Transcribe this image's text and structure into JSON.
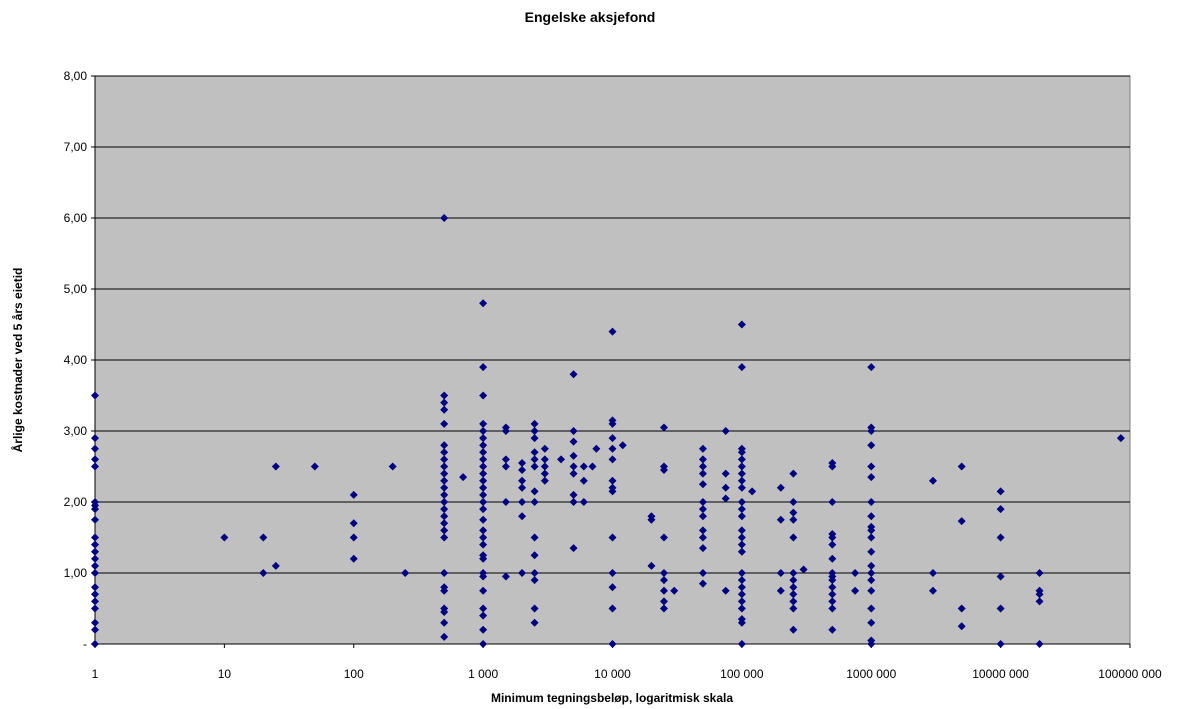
{
  "chart_data": {
    "type": "scatter",
    "title": "Engelske aksjefond",
    "xlabel": "Minimum tegningsbeløp, logaritmisk skala",
    "ylabel": "Årlige kostnader ved 5 års eietid",
    "x_scale": "log",
    "xlim": [
      1,
      100000000
    ],
    "ylim": [
      0,
      8
    ],
    "x_ticks": [
      1,
      10,
      100,
      1000,
      10000,
      100000,
      1000000,
      10000000,
      100000000
    ],
    "x_tick_labels": [
      "1",
      "10",
      "100",
      "1 000",
      "10 000",
      "100 000",
      "1000 000",
      "10000 000",
      "100000 000"
    ],
    "y_ticks": [
      0,
      1,
      2,
      3,
      4,
      5,
      6,
      7,
      8
    ],
    "y_tick_labels": [
      "-",
      "1,00",
      "2,00",
      "3,00",
      "4,00",
      "5,00",
      "6,00",
      "7,00",
      "8,00"
    ],
    "grid": "horizontal",
    "legend": "none",
    "colors": {
      "plot_background": "#c0c0c0",
      "marker": "#000080",
      "gridline": "#000000"
    },
    "points": [
      [
        1,
        3.5
      ],
      [
        1,
        2.9
      ],
      [
        1,
        2.75
      ],
      [
        1,
        2.6
      ],
      [
        1,
        2.5
      ],
      [
        1,
        2.0
      ],
      [
        1,
        1.95
      ],
      [
        1,
        1.9
      ],
      [
        1,
        1.75
      ],
      [
        1,
        1.5
      ],
      [
        1,
        1.4
      ],
      [
        1,
        1.3
      ],
      [
        1,
        1.2
      ],
      [
        1,
        1.1
      ],
      [
        1,
        1.0
      ],
      [
        1,
        0.8
      ],
      [
        1,
        0.7
      ],
      [
        1,
        0.6
      ],
      [
        1,
        0.5
      ],
      [
        1,
        0.3
      ],
      [
        1,
        0.2
      ],
      [
        1,
        0.0
      ],
      [
        10,
        1.5
      ],
      [
        20,
        1.5
      ],
      [
        20,
        1.0
      ],
      [
        25,
        2.5
      ],
      [
        25,
        1.1
      ],
      [
        50,
        2.5
      ],
      [
        100,
        2.1
      ],
      [
        100,
        1.7
      ],
      [
        100,
        1.5
      ],
      [
        100,
        1.2
      ],
      [
        200,
        2.5
      ],
      [
        250,
        1.0
      ],
      [
        500,
        6.0
      ],
      [
        500,
        3.5
      ],
      [
        500,
        3.4
      ],
      [
        500,
        3.3
      ],
      [
        500,
        3.1
      ],
      [
        500,
        2.8
      ],
      [
        500,
        2.7
      ],
      [
        500,
        2.6
      ],
      [
        500,
        2.5
      ],
      [
        500,
        2.4
      ],
      [
        500,
        2.3
      ],
      [
        500,
        2.2
      ],
      [
        500,
        2.1
      ],
      [
        500,
        2.0
      ],
      [
        500,
        1.9
      ],
      [
        500,
        1.8
      ],
      [
        500,
        1.7
      ],
      [
        500,
        1.6
      ],
      [
        500,
        1.5
      ],
      [
        500,
        1.0
      ],
      [
        500,
        0.8
      ],
      [
        500,
        0.75
      ],
      [
        500,
        0.5
      ],
      [
        500,
        0.45
      ],
      [
        500,
        0.3
      ],
      [
        500,
        0.1
      ],
      [
        700,
        2.35
      ],
      [
        1000,
        4.8
      ],
      [
        1000,
        3.9
      ],
      [
        1000,
        3.5
      ],
      [
        1000,
        3.1
      ],
      [
        1000,
        3.0
      ],
      [
        1000,
        2.9
      ],
      [
        1000,
        2.8
      ],
      [
        1000,
        2.7
      ],
      [
        1000,
        2.6
      ],
      [
        1000,
        2.5
      ],
      [
        1000,
        2.4
      ],
      [
        1000,
        2.3
      ],
      [
        1000,
        2.2
      ],
      [
        1000,
        2.1
      ],
      [
        1000,
        2.0
      ],
      [
        1000,
        1.9
      ],
      [
        1000,
        1.75
      ],
      [
        1000,
        1.6
      ],
      [
        1000,
        1.5
      ],
      [
        1000,
        1.4
      ],
      [
        1000,
        1.25
      ],
      [
        1000,
        1.2
      ],
      [
        1000,
        1.0
      ],
      [
        1000,
        0.95
      ],
      [
        1000,
        0.75
      ],
      [
        1000,
        0.5
      ],
      [
        1000,
        0.4
      ],
      [
        1000,
        0.2
      ],
      [
        1000,
        0.0
      ],
      [
        1500,
        3.05
      ],
      [
        1500,
        3.0
      ],
      [
        1500,
        2.6
      ],
      [
        1500,
        2.5
      ],
      [
        1500,
        2.0
      ],
      [
        1500,
        0.95
      ],
      [
        2000,
        2.55
      ],
      [
        2000,
        2.45
      ],
      [
        2000,
        2.3
      ],
      [
        2000,
        2.2
      ],
      [
        2000,
        2.0
      ],
      [
        2000,
        1.8
      ],
      [
        2000,
        1.0
      ],
      [
        2500,
        3.1
      ],
      [
        2500,
        3.0
      ],
      [
        2500,
        2.9
      ],
      [
        2500,
        2.7
      ],
      [
        2500,
        2.6
      ],
      [
        2500,
        2.5
      ],
      [
        2500,
        2.15
      ],
      [
        2500,
        2.0
      ],
      [
        2500,
        1.5
      ],
      [
        2500,
        1.25
      ],
      [
        2500,
        1.0
      ],
      [
        2500,
        0.9
      ],
      [
        2500,
        0.5
      ],
      [
        2500,
        0.3
      ],
      [
        3000,
        2.75
      ],
      [
        3000,
        2.6
      ],
      [
        3000,
        2.5
      ],
      [
        3000,
        2.4
      ],
      [
        3000,
        2.3
      ],
      [
        4000,
        2.6
      ],
      [
        5000,
        3.8
      ],
      [
        5000,
        3.0
      ],
      [
        5000,
        2.85
      ],
      [
        5000,
        2.65
      ],
      [
        5000,
        2.5
      ],
      [
        5000,
        2.4
      ],
      [
        5000,
        2.1
      ],
      [
        5000,
        2.0
      ],
      [
        5000,
        1.35
      ],
      [
        6000,
        2.5
      ],
      [
        6000,
        2.3
      ],
      [
        6000,
        2.0
      ],
      [
        7000,
        2.5
      ],
      [
        7500,
        2.75
      ],
      [
        10000,
        4.4
      ],
      [
        10000,
        3.15
      ],
      [
        10000,
        3.1
      ],
      [
        10000,
        2.9
      ],
      [
        10000,
        2.75
      ],
      [
        10000,
        2.6
      ],
      [
        10000,
        2.3
      ],
      [
        10000,
        2.2
      ],
      [
        10000,
        2.15
      ],
      [
        10000,
        1.5
      ],
      [
        10000,
        1.0
      ],
      [
        10000,
        0.8
      ],
      [
        10000,
        0.5
      ],
      [
        10000,
        0.0
      ],
      [
        12000,
        2.8
      ],
      [
        20000,
        1.8
      ],
      [
        20000,
        1.75
      ],
      [
        20000,
        1.1
      ],
      [
        25000,
        3.05
      ],
      [
        25000,
        2.5
      ],
      [
        25000,
        2.45
      ],
      [
        25000,
        1.5
      ],
      [
        25000,
        1.0
      ],
      [
        25000,
        0.9
      ],
      [
        25000,
        0.75
      ],
      [
        25000,
        0.6
      ],
      [
        25000,
        0.5
      ],
      [
        30000,
        0.75
      ],
      [
        50000,
        2.75
      ],
      [
        50000,
        2.6
      ],
      [
        50000,
        2.5
      ],
      [
        50000,
        2.4
      ],
      [
        50000,
        2.25
      ],
      [
        50000,
        2.0
      ],
      [
        50000,
        1.9
      ],
      [
        50000,
        1.8
      ],
      [
        50000,
        1.6
      ],
      [
        50000,
        1.5
      ],
      [
        50000,
        1.35
      ],
      [
        50000,
        1.0
      ],
      [
        50000,
        0.85
      ],
      [
        75000,
        3.0
      ],
      [
        75000,
        2.4
      ],
      [
        75000,
        2.2
      ],
      [
        75000,
        2.05
      ],
      [
        75000,
        0.75
      ],
      [
        100000,
        4.5
      ],
      [
        100000,
        3.9
      ],
      [
        100000,
        2.75
      ],
      [
        100000,
        2.7
      ],
      [
        100000,
        2.6
      ],
      [
        100000,
        2.5
      ],
      [
        100000,
        2.4
      ],
      [
        100000,
        2.3
      ],
      [
        100000,
        2.2
      ],
      [
        100000,
        2.0
      ],
      [
        100000,
        1.9
      ],
      [
        100000,
        1.8
      ],
      [
        100000,
        1.6
      ],
      [
        100000,
        1.5
      ],
      [
        100000,
        1.4
      ],
      [
        100000,
        1.3
      ],
      [
        100000,
        1.0
      ],
      [
        100000,
        0.9
      ],
      [
        100000,
        0.8
      ],
      [
        100000,
        0.7
      ],
      [
        100000,
        0.6
      ],
      [
        100000,
        0.5
      ],
      [
        100000,
        0.35
      ],
      [
        100000,
        0.3
      ],
      [
        100000,
        0.0
      ],
      [
        120000,
        2.15
      ],
      [
        200000,
        2.2
      ],
      [
        200000,
        1.75
      ],
      [
        200000,
        1.0
      ],
      [
        200000,
        0.75
      ],
      [
        250000,
        2.4
      ],
      [
        250000,
        2.0
      ],
      [
        250000,
        1.85
      ],
      [
        250000,
        1.75
      ],
      [
        250000,
        1.5
      ],
      [
        250000,
        1.0
      ],
      [
        250000,
        0.9
      ],
      [
        250000,
        0.8
      ],
      [
        250000,
        0.7
      ],
      [
        250000,
        0.6
      ],
      [
        250000,
        0.5
      ],
      [
        250000,
        0.2
      ],
      [
        300000,
        1.05
      ],
      [
        500000,
        2.55
      ],
      [
        500000,
        2.5
      ],
      [
        500000,
        2.0
      ],
      [
        500000,
        1.55
      ],
      [
        500000,
        1.5
      ],
      [
        500000,
        1.4
      ],
      [
        500000,
        1.2
      ],
      [
        500000,
        1.0
      ],
      [
        500000,
        0.95
      ],
      [
        500000,
        0.9
      ],
      [
        500000,
        0.8
      ],
      [
        500000,
        0.7
      ],
      [
        500000,
        0.6
      ],
      [
        500000,
        0.5
      ],
      [
        500000,
        0.2
      ],
      [
        750000,
        1.0
      ],
      [
        750000,
        0.75
      ],
      [
        1000000,
        3.9
      ],
      [
        1000000,
        3.05
      ],
      [
        1000000,
        3.0
      ],
      [
        1000000,
        2.8
      ],
      [
        1000000,
        2.5
      ],
      [
        1000000,
        2.35
      ],
      [
        1000000,
        2.0
      ],
      [
        1000000,
        1.8
      ],
      [
        1000000,
        1.65
      ],
      [
        1000000,
        1.6
      ],
      [
        1000000,
        1.5
      ],
      [
        1000000,
        1.3
      ],
      [
        1000000,
        1.1
      ],
      [
        1000000,
        1.0
      ],
      [
        1000000,
        0.9
      ],
      [
        1000000,
        0.75
      ],
      [
        1000000,
        0.5
      ],
      [
        1000000,
        0.3
      ],
      [
        1000000,
        0.05
      ],
      [
        1000000,
        0.0
      ],
      [
        3000000,
        2.3
      ],
      [
        3000000,
        1.0
      ],
      [
        3000000,
        0.75
      ],
      [
        5000000,
        2.5
      ],
      [
        5000000,
        1.73
      ],
      [
        5000000,
        0.5
      ],
      [
        5000000,
        0.25
      ],
      [
        10000000,
        2.15
      ],
      [
        10000000,
        1.9
      ],
      [
        10000000,
        1.5
      ],
      [
        10000000,
        0.95
      ],
      [
        10000000,
        0.5
      ],
      [
        10000000,
        0.0
      ],
      [
        20000000,
        1.0
      ],
      [
        20000000,
        0.75
      ],
      [
        20000000,
        0.7
      ],
      [
        20000000,
        0.6
      ],
      [
        20000000,
        0.0
      ],
      [
        85000000,
        2.9
      ]
    ]
  }
}
